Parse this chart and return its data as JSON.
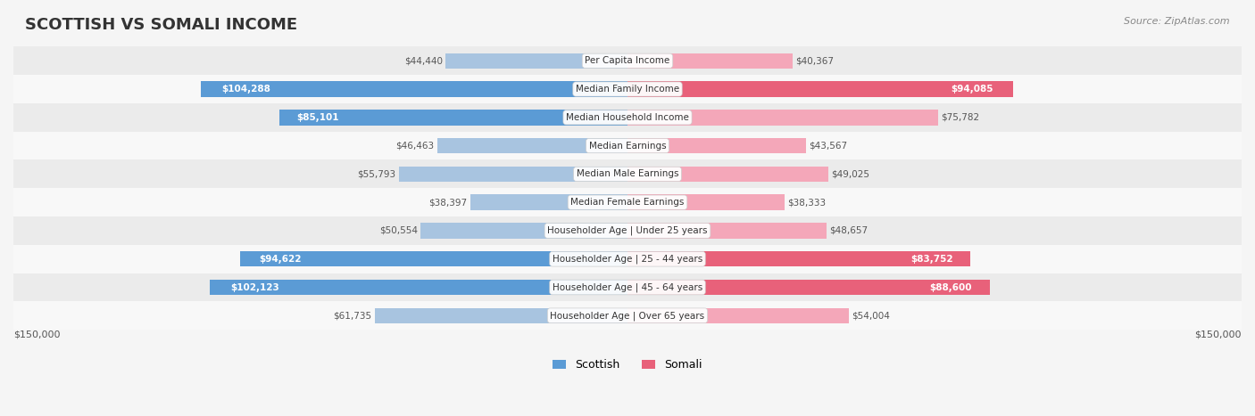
{
  "title": "SCOTTISH VS SOMALI INCOME",
  "source": "Source: ZipAtlas.com",
  "categories": [
    "Per Capita Income",
    "Median Family Income",
    "Median Household Income",
    "Median Earnings",
    "Median Male Earnings",
    "Median Female Earnings",
    "Householder Age | Under 25 years",
    "Householder Age | 25 - 44 years",
    "Householder Age | 45 - 64 years",
    "Householder Age | Over 65 years"
  ],
  "scottish_values": [
    44440,
    104288,
    85101,
    46463,
    55793,
    38397,
    50554,
    94622,
    102123,
    61735
  ],
  "somali_values": [
    40367,
    94085,
    75782,
    43567,
    49025,
    38333,
    48657,
    83752,
    88600,
    54004
  ],
  "scottish_labels": [
    "$44,440",
    "$104,288",
    "$85,101",
    "$46,463",
    "$55,793",
    "$38,397",
    "$50,554",
    "$94,622",
    "$102,123",
    "$61,735"
  ],
  "somali_labels": [
    "$40,367",
    "$94,085",
    "$75,782",
    "$43,567",
    "$49,025",
    "$38,333",
    "$48,657",
    "$83,752",
    "$88,600",
    "$54,004"
  ],
  "max_value": 150000,
  "scottish_color_light": "#a8c4e0",
  "scottish_color_dark": "#5b9bd5",
  "somali_color_light": "#f4a7b9",
  "somali_color_dark": "#e8617a",
  "label_threshold": 80000,
  "bg_color": "#f5f5f5",
  "row_bg": "#ffffff",
  "row_alt_bg": "#f0f0f0",
  "x_axis_label_left": "$150,000",
  "x_axis_label_right": "$150,000"
}
